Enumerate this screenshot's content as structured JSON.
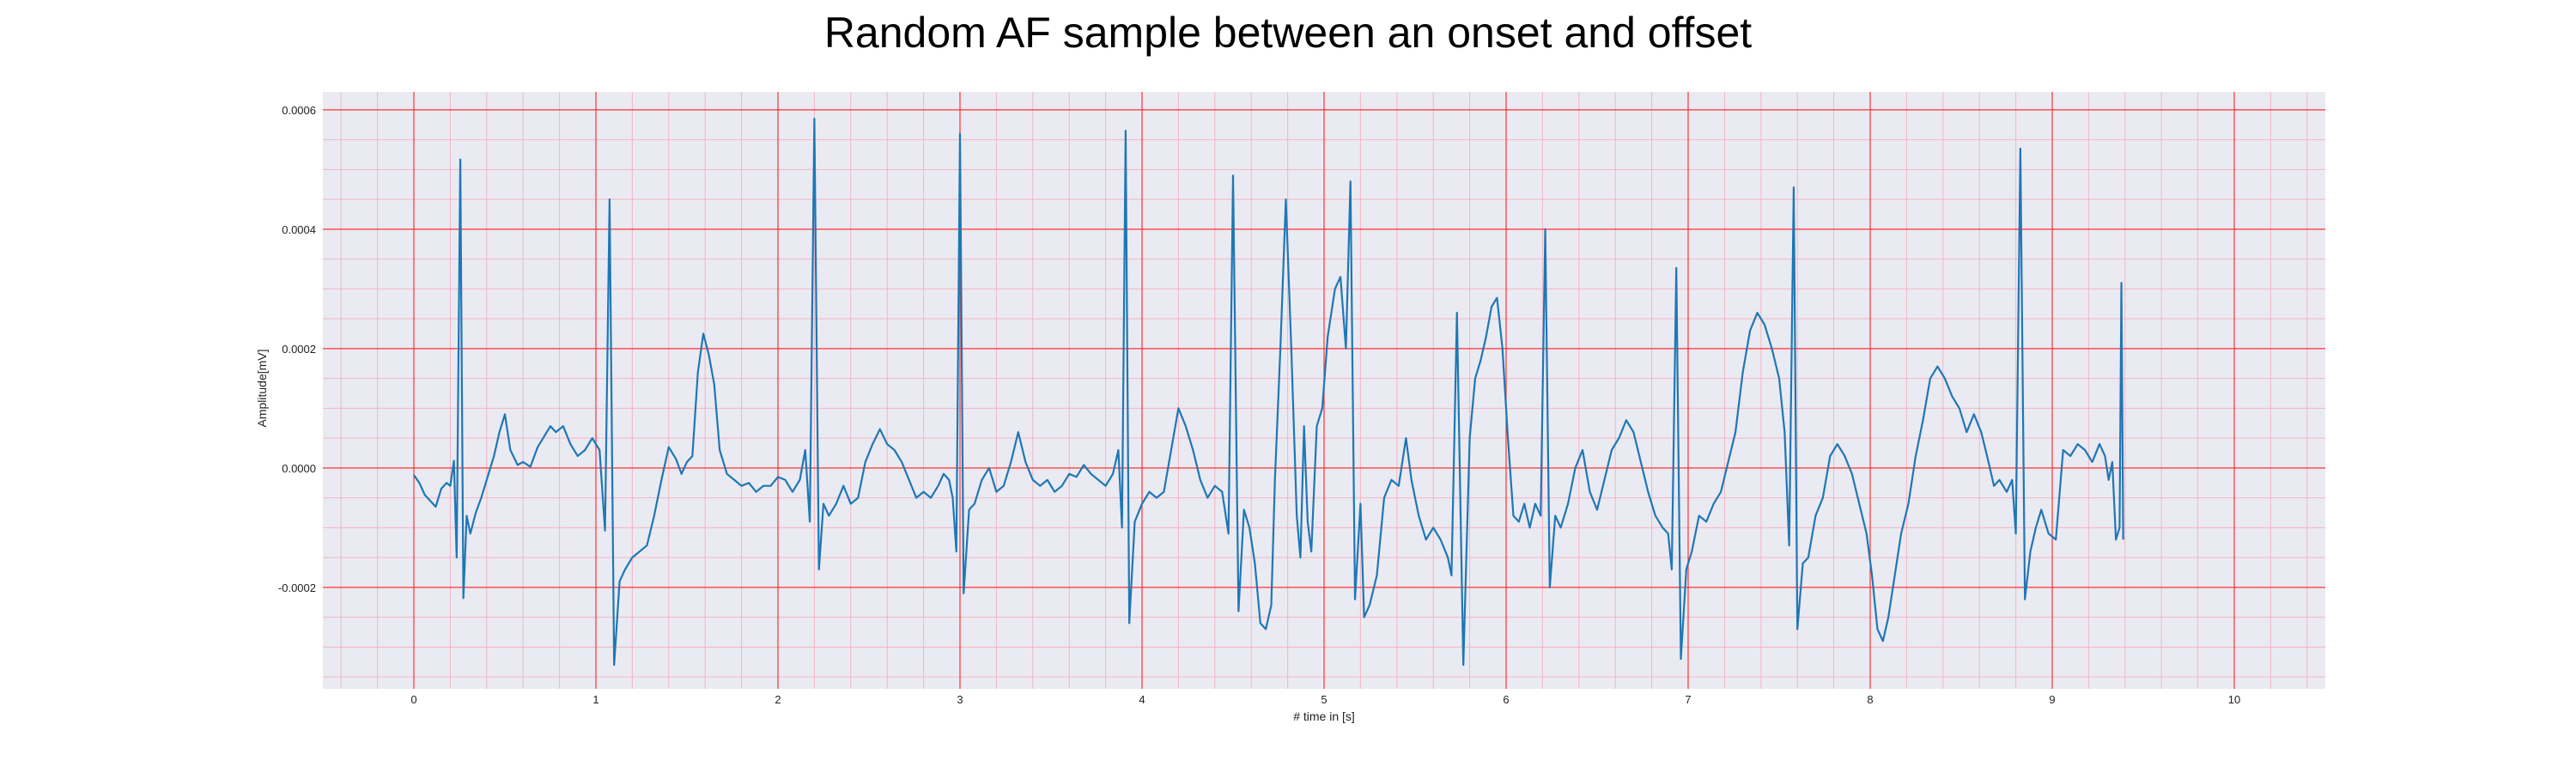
{
  "chart_data": {
    "type": "line",
    "title": "Random AF sample between an onset and offset",
    "xlabel": "# time in [s]",
    "ylabel": "Amplitude[mV]",
    "xlim": [
      -0.5,
      10.5
    ],
    "ylim": [
      -0.00037,
      0.00063
    ],
    "x_ticks": [
      0,
      1,
      2,
      3,
      4,
      5,
      6,
      7,
      8,
      9,
      10
    ],
    "x_tick_labels": [
      "0",
      "1",
      "2",
      "3",
      "4",
      "5",
      "6",
      "7",
      "8",
      "9",
      "10"
    ],
    "y_ticks": [
      -0.0002,
      0.0,
      0.0002,
      0.0004,
      0.0006
    ],
    "y_tick_labels": [
      "-0.0002",
      "0.0000",
      "0.0002",
      "0.0004",
      "0.0006"
    ],
    "grid": {
      "major": true,
      "minor": true,
      "major_color": "#ff3333",
      "minor_color": "#f5a9b8"
    },
    "legend": "none",
    "plot_background": "#eaeaf2",
    "series": [
      {
        "color": "#1f77b4",
        "points": [
          [
            0.0,
            -1.2e-05
          ],
          [
            0.03,
            -2.5e-05
          ],
          [
            0.06,
            -4.5e-05
          ],
          [
            0.09,
            -5.5e-05
          ],
          [
            0.12,
            -6.5e-05
          ],
          [
            0.15,
            -3.5e-05
          ],
          [
            0.18,
            -2.5e-05
          ],
          [
            0.2,
            -3e-05
          ],
          [
            0.22,
            1.2e-05
          ],
          [
            0.235,
            -0.00015
          ],
          [
            0.255,
            0.000517
          ],
          [
            0.272,
            -0.000218
          ],
          [
            0.29,
            -8e-05
          ],
          [
            0.31,
            -0.00011
          ],
          [
            0.34,
            -7.5e-05
          ],
          [
            0.37,
            -5e-05
          ],
          [
            0.4,
            -2e-05
          ],
          [
            0.44,
            2e-05
          ],
          [
            0.47,
            6e-05
          ],
          [
            0.5,
            9e-05
          ],
          [
            0.53,
            3e-05
          ],
          [
            0.57,
            5e-06
          ],
          [
            0.6,
            1e-05
          ],
          [
            0.64,
            2e-06
          ],
          [
            0.68,
            3.5e-05
          ],
          [
            0.72,
            5.5e-05
          ],
          [
            0.75,
            7e-05
          ],
          [
            0.78,
            6e-05
          ],
          [
            0.82,
            7e-05
          ],
          [
            0.86,
            4e-05
          ],
          [
            0.9,
            2e-05
          ],
          [
            0.94,
            3e-05
          ],
          [
            0.98,
            5e-05
          ],
          [
            1.02,
            3e-05
          ],
          [
            1.05,
            -0.000105
          ],
          [
            1.075,
            0.00045
          ],
          [
            1.1,
            -0.00033
          ],
          [
            1.13,
            -0.00019
          ],
          [
            1.16,
            -0.00017
          ],
          [
            1.2,
            -0.00015
          ],
          [
            1.24,
            -0.00014
          ],
          [
            1.28,
            -0.00013
          ],
          [
            1.32,
            -8e-05
          ],
          [
            1.36,
            -2e-05
          ],
          [
            1.4,
            3.5e-05
          ],
          [
            1.44,
            1.5e-05
          ],
          [
            1.47,
            -1e-05
          ],
          [
            1.5,
            1e-05
          ],
          [
            1.53,
            2e-05
          ],
          [
            1.56,
            0.00016
          ],
          [
            1.59,
            0.000225
          ],
          [
            1.62,
            0.00019
          ],
          [
            1.65,
            0.00014
          ],
          [
            1.68,
            3e-05
          ],
          [
            1.72,
            -1e-05
          ],
          [
            1.76,
            -2e-05
          ],
          [
            1.8,
            -3e-05
          ],
          [
            1.84,
            -2.5e-05
          ],
          [
            1.88,
            -4e-05
          ],
          [
            1.92,
            -3e-05
          ],
          [
            1.96,
            -3e-05
          ],
          [
            2.0,
            -1.5e-05
          ],
          [
            2.04,
            -2e-05
          ],
          [
            2.08,
            -4e-05
          ],
          [
            2.12,
            -2e-05
          ],
          [
            2.15,
            3e-05
          ],
          [
            2.175,
            -9e-05
          ],
          [
            2.2,
            0.000585
          ],
          [
            2.225,
            -0.00017
          ],
          [
            2.25,
            -6e-05
          ],
          [
            2.28,
            -8e-05
          ],
          [
            2.32,
            -6e-05
          ],
          [
            2.36,
            -3e-05
          ],
          [
            2.4,
            -6e-05
          ],
          [
            2.44,
            -5e-05
          ],
          [
            2.48,
            1e-05
          ],
          [
            2.52,
            4e-05
          ],
          [
            2.56,
            6.5e-05
          ],
          [
            2.6,
            4e-05
          ],
          [
            2.64,
            3e-05
          ],
          [
            2.68,
            1e-05
          ],
          [
            2.72,
            -2e-05
          ],
          [
            2.76,
            -5e-05
          ],
          [
            2.8,
            -4e-05
          ],
          [
            2.84,
            -5e-05
          ],
          [
            2.88,
            -3e-05
          ],
          [
            2.91,
            -1e-05
          ],
          [
            2.94,
            -2e-05
          ],
          [
            2.96,
            -5e-05
          ],
          [
            2.98,
            -0.00014
          ],
          [
            3.0,
            0.00056
          ],
          [
            3.02,
            -0.00021
          ],
          [
            3.05,
            -7e-05
          ],
          [
            3.08,
            -6e-05
          ],
          [
            3.12,
            -2e-05
          ],
          [
            3.16,
            0.0
          ],
          [
            3.2,
            -4e-05
          ],
          [
            3.24,
            -3e-05
          ],
          [
            3.28,
            1e-05
          ],
          [
            3.32,
            6e-05
          ],
          [
            3.36,
            1e-05
          ],
          [
            3.4,
            -2e-05
          ],
          [
            3.44,
            -3e-05
          ],
          [
            3.48,
            -2e-05
          ],
          [
            3.52,
            -4e-05
          ],
          [
            3.56,
            -3e-05
          ],
          [
            3.6,
            -1e-05
          ],
          [
            3.64,
            -1.5e-05
          ],
          [
            3.68,
            5e-06
          ],
          [
            3.72,
            -1e-05
          ],
          [
            3.76,
            -2e-05
          ],
          [
            3.8,
            -3e-05
          ],
          [
            3.84,
            -1e-05
          ],
          [
            3.87,
            3e-05
          ],
          [
            3.89,
            -0.0001
          ],
          [
            3.91,
            0.000565
          ],
          [
            3.93,
            -0.00026
          ],
          [
            3.96,
            -9e-05
          ],
          [
            4.0,
            -6e-05
          ],
          [
            4.04,
            -4e-05
          ],
          [
            4.08,
            -5e-05
          ],
          [
            4.12,
            -4e-05
          ],
          [
            4.16,
            3e-05
          ],
          [
            4.2,
            0.0001
          ],
          [
            4.24,
            7e-05
          ],
          [
            4.28,
            3e-05
          ],
          [
            4.32,
            -2e-05
          ],
          [
            4.36,
            -5e-05
          ],
          [
            4.4,
            -3e-05
          ],
          [
            4.44,
            -4e-05
          ],
          [
            4.475,
            -0.00011
          ],
          [
            4.5,
            0.00049
          ],
          [
            4.53,
            -0.00024
          ],
          [
            4.56,
            -7e-05
          ],
          [
            4.59,
            -0.0001
          ],
          [
            4.62,
            -0.00016
          ],
          [
            4.65,
            -0.00026
          ],
          [
            4.68,
            -0.00027
          ],
          [
            4.71,
            -0.00023
          ],
          [
            4.73,
            -2e-05
          ],
          [
            4.76,
            0.0002
          ],
          [
            4.79,
            0.00045
          ],
          [
            4.82,
            0.0002
          ],
          [
            4.85,
            -8e-05
          ],
          [
            4.87,
            -0.00015
          ],
          [
            4.89,
            7e-05
          ],
          [
            4.91,
            -9e-05
          ],
          [
            4.93,
            -0.00014
          ],
          [
            4.96,
            7e-05
          ],
          [
            4.99,
            0.0001
          ],
          [
            5.02,
            0.00022
          ],
          [
            5.06,
            0.0003
          ],
          [
            5.09,
            0.00032
          ],
          [
            5.12,
            0.0002
          ],
          [
            5.145,
            0.00048
          ],
          [
            5.17,
            -0.00022
          ],
          [
            5.2,
            -6e-05
          ],
          [
            5.22,
            -0.00025
          ],
          [
            5.25,
            -0.00023
          ],
          [
            5.29,
            -0.00018
          ],
          [
            5.33,
            -5e-05
          ],
          [
            5.37,
            -2e-05
          ],
          [
            5.41,
            -3e-05
          ],
          [
            5.45,
            5e-05
          ],
          [
            5.48,
            -2e-05
          ],
          [
            5.52,
            -8e-05
          ],
          [
            5.56,
            -0.00012
          ],
          [
            5.6,
            -0.0001
          ],
          [
            5.64,
            -0.00012
          ],
          [
            5.68,
            -0.00015
          ],
          [
            5.7,
            -0.00018
          ],
          [
            5.73,
            0.00026
          ],
          [
            5.765,
            -0.00033
          ],
          [
            5.8,
            5e-05
          ],
          [
            5.83,
            0.00015
          ],
          [
            5.86,
            0.00018
          ],
          [
            5.89,
            0.00022
          ],
          [
            5.92,
            0.00027
          ],
          [
            5.95,
            0.000285
          ],
          [
            5.98,
            0.0002
          ],
          [
            6.01,
            5e-05
          ],
          [
            6.04,
            -8e-05
          ],
          [
            6.07,
            -9e-05
          ],
          [
            6.1,
            -6e-05
          ],
          [
            6.13,
            -0.0001
          ],
          [
            6.16,
            -6e-05
          ],
          [
            6.19,
            -8e-05
          ],
          [
            6.215,
            0.0004
          ],
          [
            6.24,
            -0.0002
          ],
          [
            6.27,
            -8e-05
          ],
          [
            6.3,
            -0.0001
          ],
          [
            6.34,
            -6e-05
          ],
          [
            6.38,
            0.0
          ],
          [
            6.42,
            3e-05
          ],
          [
            6.46,
            -4e-05
          ],
          [
            6.5,
            -7e-05
          ],
          [
            6.54,
            -2e-05
          ],
          [
            6.58,
            3e-05
          ],
          [
            6.62,
            5e-05
          ],
          [
            6.66,
            8e-05
          ],
          [
            6.7,
            6e-05
          ],
          [
            6.74,
            1e-05
          ],
          [
            6.78,
            -4e-05
          ],
          [
            6.82,
            -8e-05
          ],
          [
            6.86,
            -0.0001
          ],
          [
            6.89,
            -0.00011
          ],
          [
            6.91,
            -0.00017
          ],
          [
            6.935,
            0.000335
          ],
          [
            6.96,
            -0.00032
          ],
          [
            6.99,
            -0.00017
          ],
          [
            7.02,
            -0.00014
          ],
          [
            7.06,
            -8e-05
          ],
          [
            7.1,
            -9e-05
          ],
          [
            7.14,
            -6e-05
          ],
          [
            7.18,
            -4e-05
          ],
          [
            7.22,
            1e-05
          ],
          [
            7.26,
            6e-05
          ],
          [
            7.3,
            0.00016
          ],
          [
            7.34,
            0.00023
          ],
          [
            7.38,
            0.00026
          ],
          [
            7.42,
            0.00024
          ],
          [
            7.46,
            0.0002
          ],
          [
            7.5,
            0.00015
          ],
          [
            7.53,
            6e-05
          ],
          [
            7.555,
            -0.00013
          ],
          [
            7.58,
            0.00047
          ],
          [
            7.6,
            -0.00027
          ],
          [
            7.63,
            -0.00016
          ],
          [
            7.66,
            -0.00015
          ],
          [
            7.7,
            -8e-05
          ],
          [
            7.74,
            -5e-05
          ],
          [
            7.78,
            2e-05
          ],
          [
            7.82,
            4e-05
          ],
          [
            7.86,
            2e-05
          ],
          [
            7.9,
            -1e-05
          ],
          [
            7.94,
            -6e-05
          ],
          [
            7.98,
            -0.00011
          ],
          [
            8.01,
            -0.00018
          ],
          [
            8.04,
            -0.00027
          ],
          [
            8.07,
            -0.00029
          ],
          [
            8.1,
            -0.00025
          ],
          [
            8.13,
            -0.00019
          ],
          [
            8.17,
            -0.00011
          ],
          [
            8.21,
            -6e-05
          ],
          [
            8.25,
            2e-05
          ],
          [
            8.29,
            8e-05
          ],
          [
            8.33,
            0.00015
          ],
          [
            8.37,
            0.00017
          ],
          [
            8.41,
            0.00015
          ],
          [
            8.45,
            0.00012
          ],
          [
            8.49,
            0.0001
          ],
          [
            8.53,
            6e-05
          ],
          [
            8.57,
            9e-05
          ],
          [
            8.61,
            6e-05
          ],
          [
            8.65,
            1e-05
          ],
          [
            8.68,
            -3e-05
          ],
          [
            8.71,
            -2e-05
          ],
          [
            8.75,
            -4e-05
          ],
          [
            8.78,
            -2e-05
          ],
          [
            8.8,
            -0.00011
          ],
          [
            8.825,
            0.000535
          ],
          [
            8.85,
            -0.00022
          ],
          [
            8.88,
            -0.00014
          ],
          [
            8.91,
            -0.0001
          ],
          [
            8.94,
            -7e-05
          ],
          [
            8.98,
            -0.00011
          ],
          [
            9.02,
            -0.00012
          ],
          [
            9.06,
            3e-05
          ],
          [
            9.1,
            2e-05
          ],
          [
            9.14,
            4e-05
          ],
          [
            9.18,
            3e-05
          ],
          [
            9.22,
            1e-05
          ],
          [
            9.26,
            4e-05
          ],
          [
            9.29,
            2e-05
          ],
          [
            9.31,
            -2e-05
          ],
          [
            9.33,
            1e-05
          ],
          [
            9.35,
            -0.00012
          ],
          [
            9.37,
            -0.0001
          ],
          [
            9.38,
            0.00031
          ],
          [
            9.39,
            -0.00012
          ]
        ]
      }
    ]
  }
}
